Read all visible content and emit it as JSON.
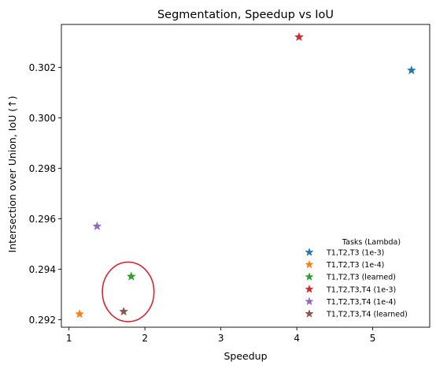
{
  "chart_data": {
    "type": "scatter",
    "title": "Segmentation, Speedup vs IoU",
    "xlabel": "Speedup",
    "ylabel": "Intersection over Union, IoU (↑)",
    "xlim": [
      0.9,
      5.75
    ],
    "ylim": [
      0.2917,
      0.3037
    ],
    "xticks": [
      1,
      2,
      3,
      4,
      5
    ],
    "xtick_labels": [
      "1",
      "2",
      "3",
      "4",
      "5"
    ],
    "yticks": [
      0.292,
      0.294,
      0.296,
      0.298,
      0.3,
      0.302
    ],
    "ytick_labels": [
      "0.292",
      "0.294",
      "0.296",
      "0.298",
      "0.300",
      "0.302"
    ],
    "grid": false,
    "marker": "star",
    "legend": {
      "title": "Tasks (Lambda)",
      "position": "lower-right"
    },
    "series": [
      {
        "name": "T1,T2,T3 (1e-3)",
        "color": "#1f77b4",
        "points": [
          {
            "x": 5.51,
            "y": 0.30188
          }
        ]
      },
      {
        "name": "T1,T2,T3 (1e-4)",
        "color": "#ff7f0e",
        "points": [
          {
            "x": 1.14,
            "y": 0.29222
          }
        ]
      },
      {
        "name": "T1,T2,T3 (learned)",
        "color": "#2ca02c",
        "points": [
          {
            "x": 1.82,
            "y": 0.29371
          }
        ]
      },
      {
        "name": "T1,T2,T3,T4 (1e-3)",
        "color": "#d62728",
        "points": [
          {
            "x": 4.03,
            "y": 0.3032
          }
        ]
      },
      {
        "name": "T1,T2,T3,T4 (1e-4)",
        "color": "#9467bd",
        "points": [
          {
            "x": 1.37,
            "y": 0.2957
          }
        ]
      },
      {
        "name": "T1,T2,T3,T4 (learned)",
        "color": "#8c564b",
        "points": [
          {
            "x": 1.72,
            "y": 0.29232
          }
        ]
      }
    ],
    "annotations": [
      {
        "type": "ellipse",
        "color": "#e0202a",
        "center": {
          "x": 1.78,
          "y": 0.2931
        },
        "radius_x": 0.34,
        "radius_y": 0.00118
      }
    ]
  }
}
